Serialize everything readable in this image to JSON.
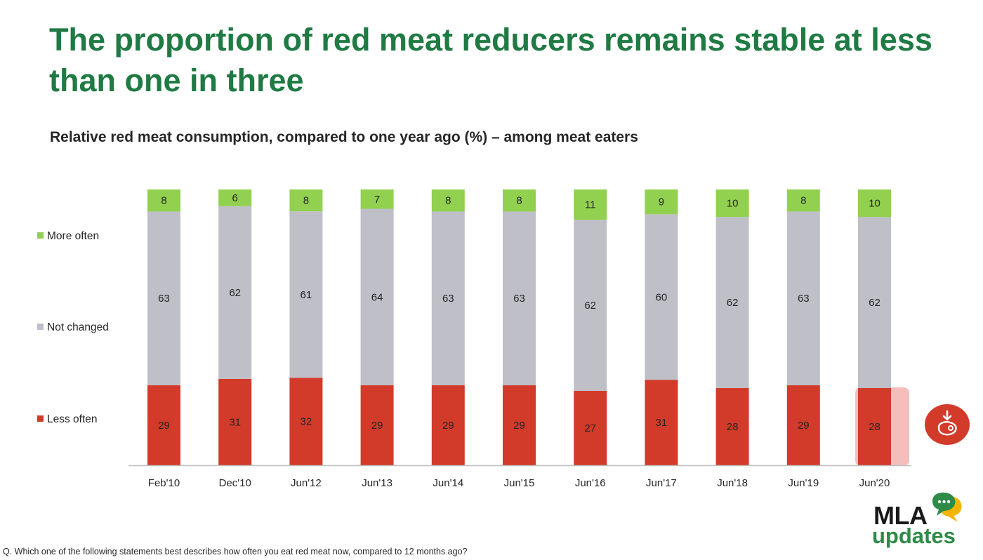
{
  "slide": {
    "title": "The proportion of red meat reducers remains stable at less than one in three",
    "subtitle": "Relative red meat consumption, compared to one year ago (%) – among meat eaters",
    "footnote": "Q. Which one of the following statements best describes how often you eat red meat now, compared to 12 months ago?",
    "highlight_icon": "steak-down-arrow-icon"
  },
  "logo": {
    "text_main": "MLA",
    "text_sub": "updates",
    "icon": "speech-bubbles-icon"
  },
  "colors": {
    "title_green": "#1f7a43",
    "more_often": "#92d050",
    "not_changed": "#bfbfc8",
    "less_often": "#d23a2a",
    "highlight": "#f2b3ae",
    "icon_red": "#d23a2a"
  },
  "chart_data": {
    "type": "bar",
    "stacked": true,
    "categories": [
      "Feb'10",
      "Dec'10",
      "Jun'12",
      "Jun'13",
      "Jun'14",
      "Jun'15",
      "Jun'16",
      "Jun'17",
      "Jun'18",
      "Jun'19",
      "Jun'20"
    ],
    "series": [
      {
        "name": "Less often",
        "values": [
          29,
          31,
          32,
          29,
          29,
          29,
          27,
          31,
          28,
          29,
          28
        ]
      },
      {
        "name": "Not changed",
        "values": [
          63,
          62,
          61,
          64,
          63,
          63,
          62,
          60,
          62,
          63,
          62
        ]
      },
      {
        "name": "More often",
        "values": [
          8,
          6,
          8,
          7,
          8,
          8,
          11,
          9,
          10,
          8,
          10
        ]
      }
    ],
    "legend": [
      "More often",
      "Not changed",
      "Less often"
    ],
    "legend_position": "left",
    "highlighted_category": "Jun'20",
    "grid": false
  }
}
